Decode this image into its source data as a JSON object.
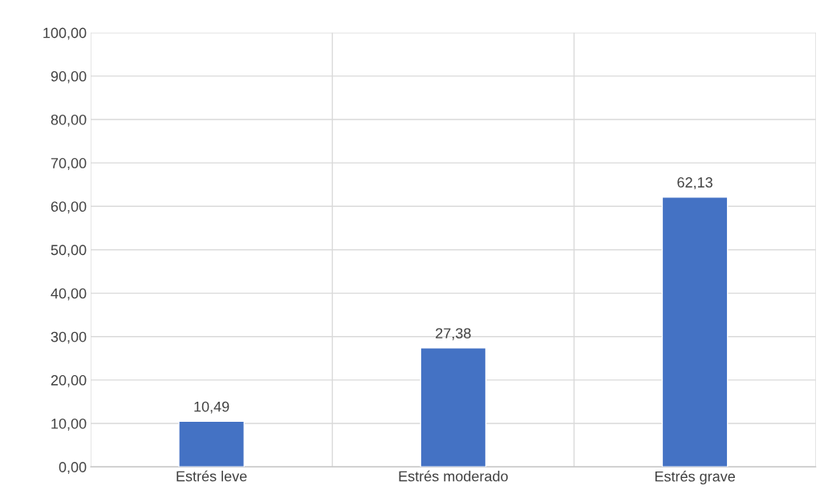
{
  "chart_data": {
    "type": "bar",
    "categories": [
      "Estrés leve",
      "Estrés moderado",
      "Estrés grave"
    ],
    "values": [
      10.49,
      27.38,
      62.13
    ],
    "value_labels": [
      "10,49",
      "27,38",
      "62,13"
    ],
    "color": "#4472c4",
    "ylim": [
      0,
      100
    ],
    "yticks": [
      {
        "value": 0,
        "label": "0,00"
      },
      {
        "value": 10,
        "label": "10,00"
      },
      {
        "value": 20,
        "label": "20,00"
      },
      {
        "value": 30,
        "label": "30,00"
      },
      {
        "value": 40,
        "label": "40,00"
      },
      {
        "value": 50,
        "label": "50,00"
      },
      {
        "value": 60,
        "label": "60,00"
      },
      {
        "value": 70,
        "label": "70,00"
      },
      {
        "value": 80,
        "label": "80,00"
      },
      {
        "value": 90,
        "label": "90,00"
      },
      {
        "value": 100,
        "label": "100,00"
      }
    ],
    "grid": true
  }
}
